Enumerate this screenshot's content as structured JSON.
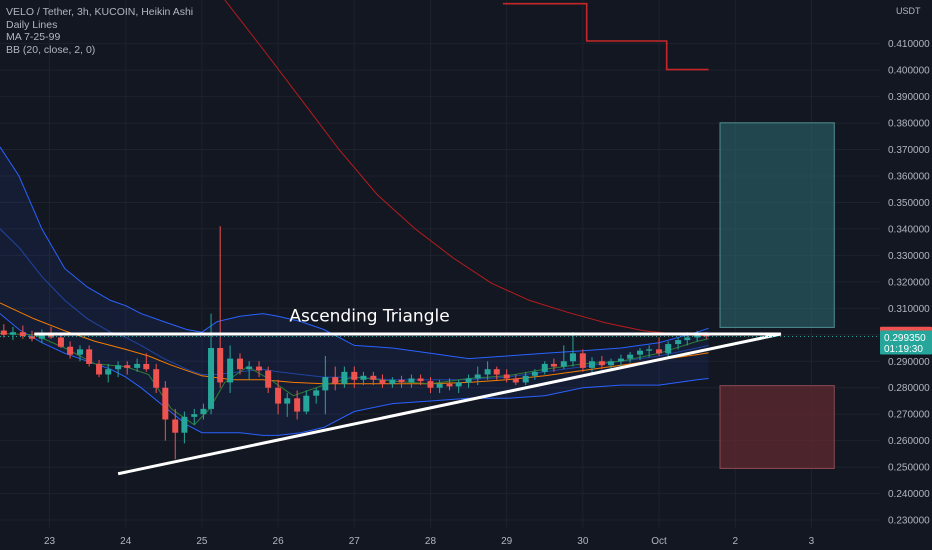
{
  "header": {
    "title": "VELO / Tether, 3h, KUCOIN, Heikin Ashi",
    "indicators": [
      "Daily Lines",
      "MA 7-25-99",
      "BB (20, close, 2, 0)"
    ]
  },
  "colors": {
    "background": "#131722",
    "grid": "#1e222d",
    "up": "#26a69a",
    "down": "#ef5350",
    "bb_band": "#2962ff",
    "ma7": "#2e7d32",
    "ma25": "#f57c00",
    "ma99": "#b71c1c",
    "daily_line": "#c62828",
    "trendline": "#ffffff",
    "target_box": "#2e6d73",
    "stop_box": "#6b2b33"
  },
  "chart_data": {
    "type": "candlestick",
    "currency": "USDT",
    "annotation": "Ascending Triangle",
    "ylim": [
      0.227,
      0.4265
    ],
    "x_tick_labels": [
      "23",
      "24",
      "25",
      "26",
      "27",
      "28",
      "29",
      "30",
      "Oct",
      "2",
      "3"
    ],
    "x_ticks_day": [
      1,
      2,
      3,
      4,
      5,
      6,
      7,
      8,
      9,
      10,
      11
    ],
    "xlim_day": [
      0.35,
      11.9
    ],
    "y_ticks": [
      0.23,
      0.24,
      0.25,
      0.26,
      0.27,
      0.28,
      0.29,
      0.3,
      0.31,
      0.32,
      0.33,
      0.34,
      0.35,
      0.36,
      0.37,
      0.38,
      0.39,
      0.4,
      0.41
    ],
    "y_tick_labels": [
      "0.230000",
      "0.240000",
      "0.250000",
      "0.260000",
      "0.270000",
      "0.280000",
      "0.290000",
      "0.300000",
      "0.310000",
      "0.320000",
      "0.330000",
      "0.340000",
      "0.350000",
      "0.360000",
      "0.370000",
      "0.380000",
      "0.390000",
      "0.400000",
      "0.410000"
    ],
    "price_labels": [
      {
        "value": 0.300376,
        "text": "0.300376",
        "color": "#ef5350"
      },
      {
        "value": 0.29935,
        "text": "0.299350",
        "sub": "01:19:30",
        "color": "#26a69a"
      }
    ],
    "candles": [
      {
        "x": 0.4,
        "o": 0.3016,
        "h": 0.304,
        "l": 0.299,
        "c": 0.3
      },
      {
        "x": 0.52,
        "o": 0.3,
        "h": 0.303,
        "l": 0.298,
        "c": 0.301
      },
      {
        "x": 0.65,
        "o": 0.301,
        "h": 0.3035,
        "l": 0.2985,
        "c": 0.2995
      },
      {
        "x": 0.77,
        "o": 0.2995,
        "h": 0.3015,
        "l": 0.2975,
        "c": 0.2985
      },
      {
        "x": 0.9,
        "o": 0.2985,
        "h": 0.302,
        "l": 0.297,
        "c": 0.3005
      },
      {
        "x": 1.02,
        "o": 0.3005,
        "h": 0.303,
        "l": 0.2985,
        "c": 0.299
      },
      {
        "x": 1.15,
        "o": 0.299,
        "h": 0.3,
        "l": 0.295,
        "c": 0.2955
      },
      {
        "x": 1.27,
        "o": 0.2955,
        "h": 0.2975,
        "l": 0.291,
        "c": 0.2925
      },
      {
        "x": 1.4,
        "o": 0.2925,
        "h": 0.296,
        "l": 0.29,
        "c": 0.2945
      },
      {
        "x": 1.52,
        "o": 0.2945,
        "h": 0.296,
        "l": 0.288,
        "c": 0.289
      },
      {
        "x": 1.65,
        "o": 0.289,
        "h": 0.2905,
        "l": 0.284,
        "c": 0.285
      },
      {
        "x": 1.77,
        "o": 0.285,
        "h": 0.289,
        "l": 0.282,
        "c": 0.287
      },
      {
        "x": 1.9,
        "o": 0.287,
        "h": 0.29,
        "l": 0.284,
        "c": 0.2885
      },
      {
        "x": 2.02,
        "o": 0.2885,
        "h": 0.29,
        "l": 0.285,
        "c": 0.2875
      },
      {
        "x": 2.15,
        "o": 0.2875,
        "h": 0.291,
        "l": 0.286,
        "c": 0.289
      },
      {
        "x": 2.27,
        "o": 0.289,
        "h": 0.293,
        "l": 0.286,
        "c": 0.287
      },
      {
        "x": 2.4,
        "o": 0.287,
        "h": 0.289,
        "l": 0.278,
        "c": 0.28
      },
      {
        "x": 2.52,
        "o": 0.28,
        "h": 0.2825,
        "l": 0.26,
        "c": 0.268
      },
      {
        "x": 2.65,
        "o": 0.268,
        "h": 0.272,
        "l": 0.253,
        "c": 0.263
      },
      {
        "x": 2.77,
        "o": 0.263,
        "h": 0.271,
        "l": 0.259,
        "c": 0.269
      },
      {
        "x": 2.9,
        "o": 0.269,
        "h": 0.272,
        "l": 0.266,
        "c": 0.27
      },
      {
        "x": 3.02,
        "o": 0.27,
        "h": 0.274,
        "l": 0.268,
        "c": 0.272
      },
      {
        "x": 3.12,
        "o": 0.272,
        "h": 0.308,
        "l": 0.27,
        "c": 0.295
      },
      {
        "x": 3.24,
        "o": 0.295,
        "h": 0.341,
        "l": 0.28,
        "c": 0.282
      },
      {
        "x": 3.37,
        "o": 0.282,
        "h": 0.296,
        "l": 0.278,
        "c": 0.291
      },
      {
        "x": 3.5,
        "o": 0.291,
        "h": 0.293,
        "l": 0.285,
        "c": 0.287
      },
      {
        "x": 3.62,
        "o": 0.287,
        "h": 0.29,
        "l": 0.283,
        "c": 0.288
      },
      {
        "x": 3.75,
        "o": 0.288,
        "h": 0.29,
        "l": 0.284,
        "c": 0.2865
      },
      {
        "x": 3.87,
        "o": 0.2865,
        "h": 0.288,
        "l": 0.278,
        "c": 0.28
      },
      {
        "x": 4.0,
        "o": 0.28,
        "h": 0.283,
        "l": 0.27,
        "c": 0.274
      },
      {
        "x": 4.12,
        "o": 0.274,
        "h": 0.278,
        "l": 0.269,
        "c": 0.276
      },
      {
        "x": 4.25,
        "o": 0.276,
        "h": 0.279,
        "l": 0.268,
        "c": 0.271
      },
      {
        "x": 4.37,
        "o": 0.271,
        "h": 0.279,
        "l": 0.27,
        "c": 0.277
      },
      {
        "x": 4.5,
        "o": 0.277,
        "h": 0.28,
        "l": 0.274,
        "c": 0.279
      },
      {
        "x": 4.62,
        "o": 0.279,
        "h": 0.292,
        "l": 0.27,
        "c": 0.284
      },
      {
        "x": 4.75,
        "o": 0.284,
        "h": 0.288,
        "l": 0.279,
        "c": 0.2815
      },
      {
        "x": 4.87,
        "o": 0.2815,
        "h": 0.288,
        "l": 0.28,
        "c": 0.286
      },
      {
        "x": 5.0,
        "o": 0.286,
        "h": 0.288,
        "l": 0.28,
        "c": 0.283
      },
      {
        "x": 5.12,
        "o": 0.283,
        "h": 0.286,
        "l": 0.281,
        "c": 0.2845
      },
      {
        "x": 5.25,
        "o": 0.2845,
        "h": 0.286,
        "l": 0.281,
        "c": 0.283
      },
      {
        "x": 5.37,
        "o": 0.283,
        "h": 0.285,
        "l": 0.28,
        "c": 0.2815
      },
      {
        "x": 5.5,
        "o": 0.2815,
        "h": 0.284,
        "l": 0.28,
        "c": 0.283
      },
      {
        "x": 5.62,
        "o": 0.283,
        "h": 0.2845,
        "l": 0.28,
        "c": 0.282
      },
      {
        "x": 5.75,
        "o": 0.282,
        "h": 0.285,
        "l": 0.28,
        "c": 0.2835
      },
      {
        "x": 5.87,
        "o": 0.2835,
        "h": 0.285,
        "l": 0.281,
        "c": 0.2825
      },
      {
        "x": 6.0,
        "o": 0.2825,
        "h": 0.284,
        "l": 0.278,
        "c": 0.28
      },
      {
        "x": 6.12,
        "o": 0.28,
        "h": 0.283,
        "l": 0.278,
        "c": 0.2815
      },
      {
        "x": 6.25,
        "o": 0.2815,
        "h": 0.2835,
        "l": 0.279,
        "c": 0.2805
      },
      {
        "x": 6.37,
        "o": 0.2805,
        "h": 0.283,
        "l": 0.278,
        "c": 0.282
      },
      {
        "x": 6.5,
        "o": 0.282,
        "h": 0.285,
        "l": 0.28,
        "c": 0.2835
      },
      {
        "x": 6.62,
        "o": 0.2835,
        "h": 0.288,
        "l": 0.281,
        "c": 0.285
      },
      {
        "x": 6.75,
        "o": 0.285,
        "h": 0.29,
        "l": 0.283,
        "c": 0.287
      },
      {
        "x": 6.87,
        "o": 0.287,
        "h": 0.288,
        "l": 0.283,
        "c": 0.285
      },
      {
        "x": 7.0,
        "o": 0.285,
        "h": 0.287,
        "l": 0.282,
        "c": 0.2835
      },
      {
        "x": 7.12,
        "o": 0.2835,
        "h": 0.285,
        "l": 0.281,
        "c": 0.282
      },
      {
        "x": 7.25,
        "o": 0.282,
        "h": 0.286,
        "l": 0.281,
        "c": 0.2845
      },
      {
        "x": 7.37,
        "o": 0.2845,
        "h": 0.287,
        "l": 0.283,
        "c": 0.286
      },
      {
        "x": 7.5,
        "o": 0.286,
        "h": 0.29,
        "l": 0.285,
        "c": 0.289
      },
      {
        "x": 7.62,
        "o": 0.289,
        "h": 0.291,
        "l": 0.286,
        "c": 0.288
      },
      {
        "x": 7.75,
        "o": 0.288,
        "h": 0.296,
        "l": 0.287,
        "c": 0.29
      },
      {
        "x": 7.87,
        "o": 0.29,
        "h": 0.301,
        "l": 0.288,
        "c": 0.293
      },
      {
        "x": 8.0,
        "o": 0.293,
        "h": 0.2945,
        "l": 0.286,
        "c": 0.2875
      },
      {
        "x": 8.12,
        "o": 0.2875,
        "h": 0.2915,
        "l": 0.2855,
        "c": 0.29
      },
      {
        "x": 8.25,
        "o": 0.29,
        "h": 0.292,
        "l": 0.287,
        "c": 0.2885
      },
      {
        "x": 8.37,
        "o": 0.2885,
        "h": 0.291,
        "l": 0.287,
        "c": 0.29
      },
      {
        "x": 8.5,
        "o": 0.29,
        "h": 0.2925,
        "l": 0.288,
        "c": 0.291
      },
      {
        "x": 8.62,
        "o": 0.291,
        "h": 0.2935,
        "l": 0.2895,
        "c": 0.2925
      },
      {
        "x": 8.75,
        "o": 0.2925,
        "h": 0.295,
        "l": 0.2905,
        "c": 0.294
      },
      {
        "x": 8.87,
        "o": 0.294,
        "h": 0.296,
        "l": 0.2915,
        "c": 0.2945
      },
      {
        "x": 9.0,
        "o": 0.2945,
        "h": 0.299,
        "l": 0.292,
        "c": 0.293
      },
      {
        "x": 9.12,
        "o": 0.293,
        "h": 0.2975,
        "l": 0.2915,
        "c": 0.2965
      },
      {
        "x": 9.25,
        "o": 0.2965,
        "h": 0.299,
        "l": 0.2945,
        "c": 0.298
      },
      {
        "x": 9.37,
        "o": 0.298,
        "h": 0.301,
        "l": 0.296,
        "c": 0.299
      },
      {
        "x": 9.5,
        "o": 0.299,
        "h": 0.3015,
        "l": 0.2975,
        "c": 0.3
      },
      {
        "x": 9.62,
        "o": 0.3,
        "h": 0.301,
        "l": 0.2985,
        "c": 0.2994
      }
    ],
    "series": [
      {
        "kind": "bb_upper",
        "x": [
          0.35,
          0.6,
          0.9,
          1.2,
          1.5,
          1.8,
          2.0,
          2.2,
          2.5,
          2.8,
          3.0,
          3.2,
          3.5,
          3.8,
          4.0,
          4.3,
          4.6,
          5.0,
          5.5,
          6.0,
          6.5,
          7.0,
          7.5,
          8.0,
          8.5,
          9.0,
          9.5,
          9.65
        ],
        "y": [
          0.371,
          0.36,
          0.34,
          0.325,
          0.318,
          0.313,
          0.311,
          0.308,
          0.305,
          0.302,
          0.301,
          0.305,
          0.307,
          0.308,
          0.307,
          0.305,
          0.302,
          0.296,
          0.295,
          0.293,
          0.291,
          0.292,
          0.293,
          0.294,
          0.295,
          0.297,
          0.301,
          0.3025
        ]
      },
      {
        "kind": "bb_middle",
        "x": [
          0.35,
          0.6,
          0.9,
          1.2,
          1.5,
          1.8,
          2.0,
          2.2,
          2.5,
          2.8,
          3.0,
          3.2,
          3.5,
          3.8,
          4.0,
          4.3,
          4.6,
          5.0,
          5.5,
          6.0,
          6.5,
          7.0,
          7.5,
          8.0,
          8.5,
          9.0,
          9.5,
          9.65
        ],
        "y": [
          0.34,
          0.333,
          0.322,
          0.313,
          0.306,
          0.301,
          0.299,
          0.296,
          0.291,
          0.287,
          0.285,
          0.285,
          0.286,
          0.287,
          0.286,
          0.285,
          0.284,
          0.284,
          0.283,
          0.283,
          0.283,
          0.284,
          0.286,
          0.288,
          0.29,
          0.292,
          0.295,
          0.296
        ]
      },
      {
        "kind": "bb_lower",
        "x": [
          0.35,
          0.6,
          0.9,
          1.2,
          1.5,
          1.8,
          2.0,
          2.2,
          2.5,
          2.8,
          3.0,
          3.2,
          3.5,
          3.8,
          4.0,
          4.3,
          4.6,
          5.0,
          5.5,
          6.0,
          6.5,
          7.0,
          7.5,
          8.0,
          8.5,
          9.0,
          9.5,
          9.65
        ],
        "y": [
          0.308,
          0.302,
          0.297,
          0.293,
          0.29,
          0.287,
          0.284,
          0.28,
          0.273,
          0.266,
          0.263,
          0.263,
          0.263,
          0.262,
          0.262,
          0.263,
          0.265,
          0.271,
          0.274,
          0.275,
          0.276,
          0.276,
          0.277,
          0.28,
          0.281,
          0.281,
          0.283,
          0.2835
        ]
      },
      {
        "kind": "ma7",
        "x": [
          0.35,
          0.8,
          1.2,
          1.6,
          2.0,
          2.3,
          2.6,
          2.9,
          3.1,
          3.3,
          3.6,
          3.9,
          4.2,
          4.6,
          5.0,
          5.5,
          6.0,
          6.5,
          7.0,
          7.5,
          8.0,
          8.5,
          9.0,
          9.5,
          9.65
        ],
        "y": [
          0.3005,
          0.3,
          0.295,
          0.289,
          0.288,
          0.285,
          0.272,
          0.266,
          0.272,
          0.282,
          0.288,
          0.283,
          0.277,
          0.281,
          0.284,
          0.2825,
          0.2815,
          0.2835,
          0.2845,
          0.287,
          0.289,
          0.29,
          0.293,
          0.2975,
          0.2985
        ]
      },
      {
        "kind": "ma25",
        "x": [
          0.35,
          0.8,
          1.2,
          1.6,
          2.0,
          2.3,
          2.6,
          3.0,
          3.4,
          3.8,
          4.2,
          4.6,
          5.0,
          5.5,
          6.0,
          6.5,
          7.0,
          7.5,
          8.0,
          8.5,
          9.0,
          9.5,
          9.65
        ],
        "y": [
          0.312,
          0.306,
          0.3015,
          0.2975,
          0.2945,
          0.292,
          0.2885,
          0.2845,
          0.283,
          0.283,
          0.282,
          0.2815,
          0.2815,
          0.2815,
          0.2815,
          0.282,
          0.283,
          0.2845,
          0.2865,
          0.2885,
          0.2905,
          0.2925,
          0.2932
        ]
      },
      {
        "kind": "ma99",
        "x": [
          3.3,
          3.8,
          4.3,
          4.8,
          5.3,
          5.8,
          6.3,
          6.8,
          7.3,
          7.8,
          8.3,
          8.8,
          9.2,
          9.65
        ],
        "y": [
          0.4265,
          0.408,
          0.389,
          0.37,
          0.353,
          0.34,
          0.329,
          0.3195,
          0.313,
          0.3085,
          0.3045,
          0.3015,
          0.3003,
          0.2995
        ]
      },
      {
        "kind": "daily_line",
        "x": [
          6.95,
          7.85,
          7.85,
          8.05,
          8.05,
          8.95,
          8.95,
          9.1,
          9.1,
          9.65
        ],
        "y": [
          0.4251,
          0.4251,
          0.4251,
          0.4251,
          0.411,
          0.411,
          0.411,
          0.411,
          0.4002,
          0.4002
        ]
      }
    ],
    "drawings": {
      "resistance": {
        "x1": 0.8,
        "y1": 0.3003,
        "x2": 10.6,
        "y2": 0.3003
      },
      "support": {
        "x1": 1.9,
        "y1": 0.2475,
        "x2": 10.6,
        "y2": 0.3003
      },
      "target_box": {
        "x1": 9.8,
        "x2": 11.3,
        "y_top": 0.3801,
        "y_bottom": 0.3028
      },
      "stop_box": {
        "x1": 9.8,
        "x2": 11.3,
        "y_top": 0.2808,
        "y_bottom": 0.2495
      },
      "label": {
        "x": 5.2,
        "y": 0.305
      }
    }
  }
}
